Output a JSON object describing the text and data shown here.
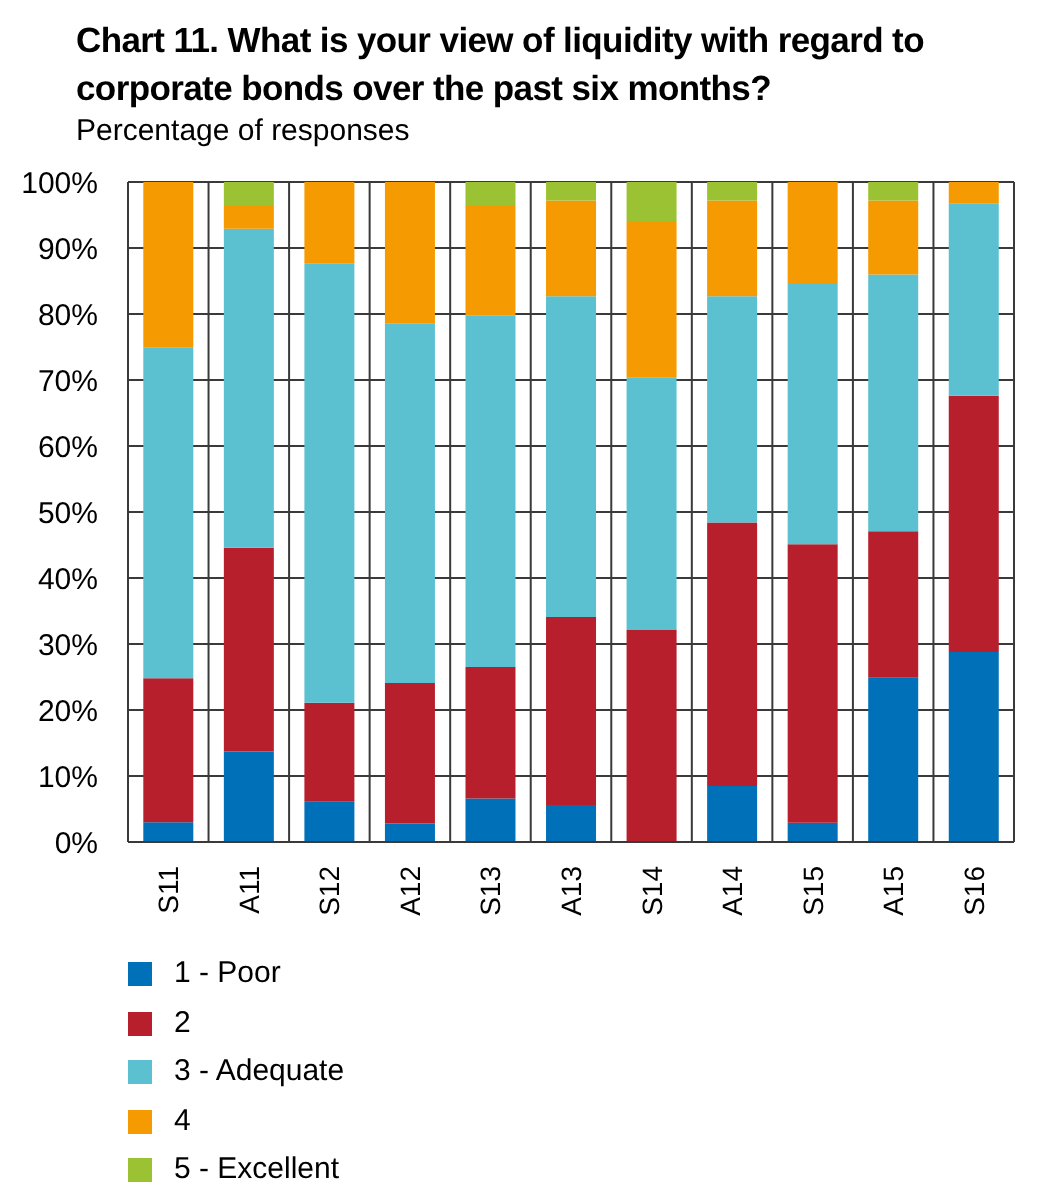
{
  "chart_data": {
    "type": "bar",
    "title": "Chart 11. What is your view of liquidity with regard to corporate bonds over the past six months?",
    "subtitle": "Percentage of responses",
    "categories": [
      "S11",
      "A11",
      "S12",
      "A12",
      "S13",
      "A13",
      "S14",
      "A14",
      "S15",
      "A15",
      "S16"
    ],
    "stacked": true,
    "series": [
      {
        "name": "1 - Poor",
        "color": "#0070b8",
        "values": [
          3.0,
          13.7,
          6.1,
          2.8,
          6.6,
          5.6,
          0,
          8.5,
          2.9,
          24.9,
          28.8
        ]
      },
      {
        "name": "2",
        "color": "#b81f2d",
        "values": [
          21.8,
          30.9,
          15.0,
          21.3,
          19.9,
          28.5,
          32.2,
          39.9,
          42.2,
          22.2,
          38.8
        ]
      },
      {
        "name": "3 - Adequate",
        "color": "#5bc0d0",
        "values": [
          50.1,
          48.3,
          66.6,
          54.5,
          53.3,
          48.6,
          38.2,
          34.3,
          39.6,
          38.9,
          29.1
        ]
      },
      {
        "name": "4",
        "color": "#f59a00",
        "values": [
          25.1,
          3.6,
          12.3,
          21.4,
          16.7,
          14.5,
          23.7,
          14.5,
          15.3,
          11.2,
          3.3
        ]
      },
      {
        "name": "5 - Excellent",
        "color": "#9bc232",
        "values": [
          0,
          3.5,
          0,
          0,
          3.5,
          2.8,
          5.9,
          2.8,
          0,
          2.8,
          0
        ]
      }
    ],
    "ylim": [
      0,
      100
    ],
    "yticks": [
      {
        "value": 0,
        "label": "0%"
      },
      {
        "value": 10,
        "label": "10%"
      },
      {
        "value": 20,
        "label": "20%"
      },
      {
        "value": 30,
        "label": "30%"
      },
      {
        "value": 40,
        "label": "40%"
      },
      {
        "value": 50,
        "label": "50%"
      },
      {
        "value": 60,
        "label": "60%"
      },
      {
        "value": 70,
        "label": "70%"
      },
      {
        "value": 80,
        "label": "80%"
      },
      {
        "value": 90,
        "label": "90%"
      },
      {
        "value": 100,
        "label": "100%"
      }
    ],
    "grid": true,
    "legend": "bottom"
  }
}
